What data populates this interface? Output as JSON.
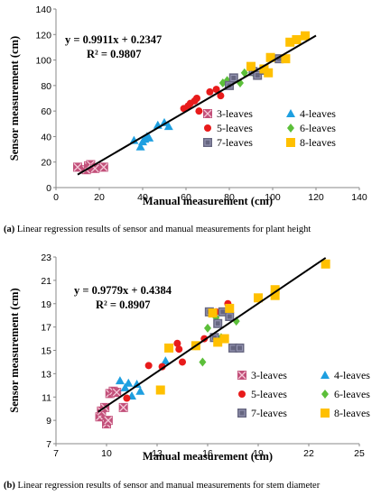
{
  "chart_data": [
    {
      "type": "scatter",
      "xlabel": "Manual measurement (cm)",
      "ylabel": "Sensor measurement (cm)",
      "xlim": [
        0,
        140
      ],
      "ylim": [
        0,
        140
      ],
      "xticks": [
        0,
        20,
        40,
        60,
        80,
        100,
        120,
        140
      ],
      "yticks": [
        0,
        20,
        40,
        60,
        80,
        100,
        120,
        140
      ],
      "equation": "y = 0.9911x + 0.2347",
      "r2": "R² = 0.9807",
      "fit": {
        "slope": 0.9911,
        "intercept": 0.2347,
        "xrange": [
          10,
          120
        ]
      },
      "legend_placement": "bottom-right",
      "caption_label": "(a)",
      "caption_text": "Linear regression results of sensor and manual measurements for plant height",
      "series": [
        {
          "name": "3-leaves",
          "marker": "xsquare",
          "color": "#c2507a",
          "points": [
            [
              10,
              16
            ],
            [
              14,
              14
            ],
            [
              15,
              17
            ],
            [
              16,
              18
            ],
            [
              18,
              15
            ],
            [
              22,
              16
            ]
          ]
        },
        {
          "name": "4-leaves",
          "marker": "triangle",
          "color": "#1e9fe0",
          "points": [
            [
              36,
              37
            ],
            [
              39,
              32
            ],
            [
              40,
              36
            ],
            [
              41,
              38
            ],
            [
              42,
              40
            ],
            [
              43,
              39
            ],
            [
              47,
              49
            ],
            [
              50,
              51
            ],
            [
              52,
              48
            ]
          ]
        },
        {
          "name": "5-leaves",
          "marker": "circle",
          "color": "#e81b1b",
          "points": [
            [
              59,
              62
            ],
            [
              61,
              64
            ],
            [
              62,
              66
            ],
            [
              64,
              68
            ],
            [
              65,
              70
            ],
            [
              66,
              60
            ],
            [
              71,
              75
            ],
            [
              74,
              77
            ],
            [
              76,
              72
            ]
          ]
        },
        {
          "name": "6-leaves",
          "marker": "diamond",
          "color": "#5cbf3a",
          "points": [
            [
              77,
              82
            ],
            [
              79,
              84
            ],
            [
              82,
              86
            ],
            [
              85,
              82
            ],
            [
              87,
              90
            ],
            [
              92,
              88
            ]
          ]
        },
        {
          "name": "7-leaves",
          "marker": "square",
          "color": "#666680",
          "points": [
            [
              80,
              80
            ],
            [
              82,
              86
            ],
            [
              91,
              91
            ],
            [
              93,
              88
            ],
            [
              96,
              92
            ],
            [
              103,
              101
            ]
          ]
        },
        {
          "name": "8-leaves",
          "marker": "fsquare",
          "color": "#ffc000",
          "points": [
            [
              90,
              95
            ],
            [
              96,
              93
            ],
            [
              98,
              90
            ],
            [
              99,
              102
            ],
            [
              106,
              101
            ],
            [
              108,
              114
            ],
            [
              111,
              116
            ],
            [
              115,
              119
            ]
          ]
        }
      ]
    },
    {
      "type": "scatter",
      "xlabel": "Manual measurement (cm)",
      "ylabel": "Sensor measurement (cm)",
      "xlim": [
        7,
        25
      ],
      "ylim": [
        7,
        23
      ],
      "xticks": [
        7,
        10,
        13,
        16,
        19,
        22,
        25
      ],
      "yticks": [
        7,
        9,
        11,
        13,
        15,
        17,
        19,
        21,
        23
      ],
      "equation": "y = 0.9779x + 0.4384",
      "r2": "R² = 0.8907",
      "fit": {
        "slope": 0.9779,
        "intercept": 0.4384,
        "xrange": [
          9.5,
          23
        ]
      },
      "legend_placement": "bottom-right",
      "caption_label": "(b)",
      "caption_text": "Linear regression results of sensor and manual measurements for stem diameter",
      "series": [
        {
          "name": "3-leaves",
          "marker": "xsquare",
          "color": "#c2507a",
          "points": [
            [
              9.6,
              9.3
            ],
            [
              9.7,
              9.8
            ],
            [
              9.9,
              10.1
            ],
            [
              10.0,
              8.7
            ],
            [
              10.1,
              9.0
            ],
            [
              10.2,
              11.3
            ],
            [
              10.4,
              11.5
            ],
            [
              10.6,
              11.4
            ],
            [
              11.0,
              10.1
            ]
          ]
        },
        {
          "name": "4-leaves",
          "marker": "triangle",
          "color": "#1e9fe0",
          "points": [
            [
              10.8,
              12.4
            ],
            [
              11.1,
              11.8
            ],
            [
              11.3,
              12.2
            ],
            [
              11.5,
              11.1
            ],
            [
              11.8,
              12.1
            ],
            [
              12.0,
              11.5
            ],
            [
              13.5,
              14.1
            ]
          ]
        },
        {
          "name": "5-leaves",
          "marker": "circle",
          "color": "#e81b1b",
          "points": [
            [
              11.2,
              10.9
            ],
            [
              12.5,
              13.7
            ],
            [
              13.3,
              13.6
            ],
            [
              14.2,
              15.6
            ],
            [
              14.3,
              15.1
            ],
            [
              14.5,
              14.0
            ],
            [
              15.8,
              16.0
            ],
            [
              16.5,
              18.3
            ],
            [
              17.2,
              19.0
            ]
          ]
        },
        {
          "name": "6-leaves",
          "marker": "diamond",
          "color": "#5cbf3a",
          "points": [
            [
              15.3,
              15.4
            ],
            [
              15.7,
              14.0
            ],
            [
              16.0,
              16.9
            ],
            [
              16.5,
              17.8
            ],
            [
              16.8,
              16.1
            ],
            [
              17.7,
              17.5
            ]
          ]
        },
        {
          "name": "7-leaves",
          "marker": "square",
          "color": "#666680",
          "points": [
            [
              16.1,
              18.3
            ],
            [
              16.4,
              16.1
            ],
            [
              16.6,
              17.3
            ],
            [
              16.9,
              18.3
            ],
            [
              17.3,
              17.9
            ],
            [
              17.5,
              15.2
            ],
            [
              17.9,
              15.2
            ]
          ]
        },
        {
          "name": "8-leaves",
          "marker": "fsquare",
          "color": "#ffc000",
          "points": [
            [
              13.2,
              11.6
            ],
            [
              13.7,
              15.2
            ],
            [
              15.3,
              15.4
            ],
            [
              16.3,
              18.2
            ],
            [
              16.6,
              15.7
            ],
            [
              17.0,
              16.0
            ],
            [
              17.3,
              18.6
            ],
            [
              19.0,
              19.5
            ],
            [
              20.0,
              19.7
            ],
            [
              20.0,
              20.2
            ],
            [
              23.0,
              22.4
            ]
          ]
        }
      ]
    }
  ]
}
